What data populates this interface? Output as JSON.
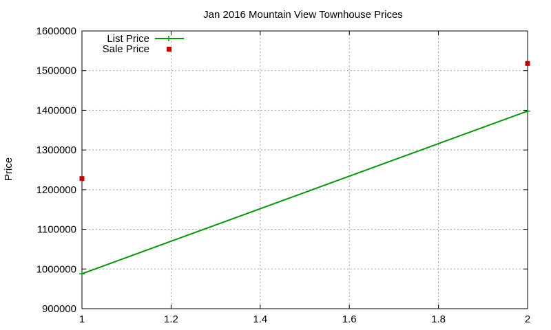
{
  "chart_data": {
    "type": "line",
    "title": "Jan 2016 Mountain View Townhouse Prices",
    "xlabel": "",
    "ylabel": "Price",
    "xlim": [
      1,
      2
    ],
    "ylim": [
      900000,
      1600000
    ],
    "xticks": [
      1,
      1.2,
      1.4,
      1.6,
      1.8,
      2
    ],
    "xtick_labels": [
      "1",
      "1.2",
      "1.4",
      "1.6",
      "1.8",
      "2"
    ],
    "yticks": [
      900000,
      1000000,
      1100000,
      1200000,
      1300000,
      1400000,
      1500000,
      1600000
    ],
    "ytick_labels": [
      "900000",
      "1000000",
      "1100000",
      "1200000",
      "1300000",
      "1400000",
      "1500000",
      "1600000"
    ],
    "grid": true,
    "legend_position": "top-left",
    "series": [
      {
        "name": "List Price",
        "style": "line-with-points",
        "color": "#009900",
        "x": [
          1,
          2
        ],
        "y": [
          988000,
          1398000
        ]
      },
      {
        "name": "Sale Price",
        "style": "points",
        "color": "#c00000",
        "x": [
          1,
          2
        ],
        "y": [
          1228000,
          1518000
        ]
      }
    ]
  }
}
